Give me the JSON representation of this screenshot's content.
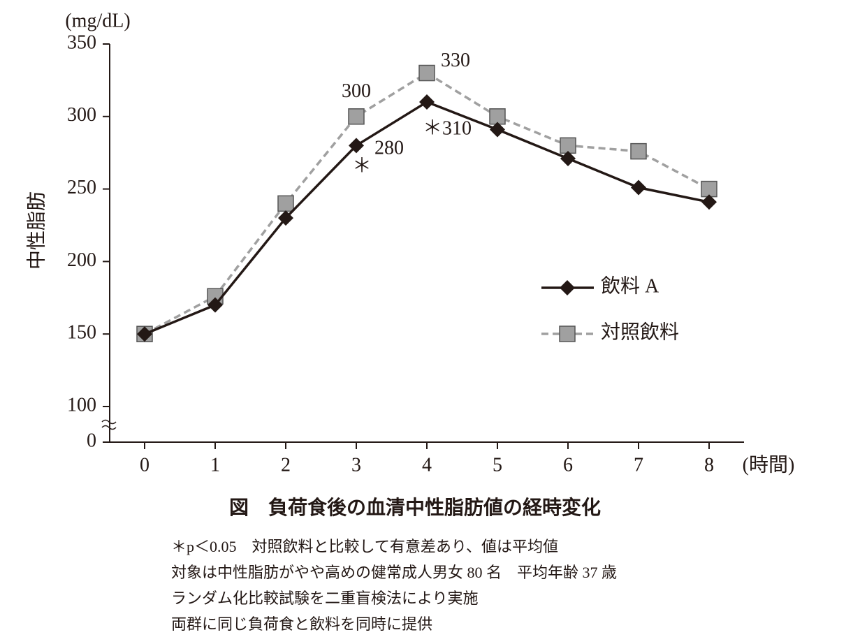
{
  "chart_data": {
    "type": "line",
    "y_unit": "(mg/dL)",
    "ylabel": "中性脂肪",
    "xlabel": "(時間)",
    "x": [
      0,
      1,
      2,
      3,
      4,
      5,
      6,
      7,
      8
    ],
    "xlim": [
      0,
      8
    ],
    "xticks": [
      0,
      1,
      2,
      3,
      4,
      5,
      6,
      7,
      8
    ],
    "ylim": [
      0,
      350
    ],
    "yticks": [
      0,
      100,
      150,
      200,
      250,
      300,
      350
    ],
    "axis_break": [
      0,
      100
    ],
    "legend": "right",
    "series": [
      {
        "name": "飲料 A",
        "color": "#231815",
        "marker": "diamond",
        "dash": false,
        "values": [
          150,
          170,
          230,
          280,
          310,
          291,
          271,
          251,
          241
        ],
        "value_labels": [
          null,
          null,
          null,
          "280",
          "＊310",
          null,
          null,
          null,
          null
        ]
      },
      {
        "name": "対照飲料",
        "color": "#a0a0a0",
        "marker": "square",
        "dash": true,
        "values": [
          150,
          176,
          240,
          300,
          330,
          300,
          280,
          276,
          250
        ],
        "value_labels": [
          null,
          null,
          null,
          "300",
          "330",
          null,
          null,
          null,
          null
        ]
      }
    ],
    "annotations": [
      {
        "text": "＊",
        "x": 3,
        "series": 0
      }
    ],
    "caption": "図　負荷食後の血清中性脂肪値の経時変化",
    "notes": [
      "＊p＜0.05　対照飲料と比較して有意差あり、値は平均値",
      "対象は中性脂肪がやや高めの健常成人男女 80 名　平均年齢 37 歳",
      "ランダム化比較試験を二重盲検法により実施",
      "両群に同じ負荷食と飲料を同時に提供"
    ]
  }
}
